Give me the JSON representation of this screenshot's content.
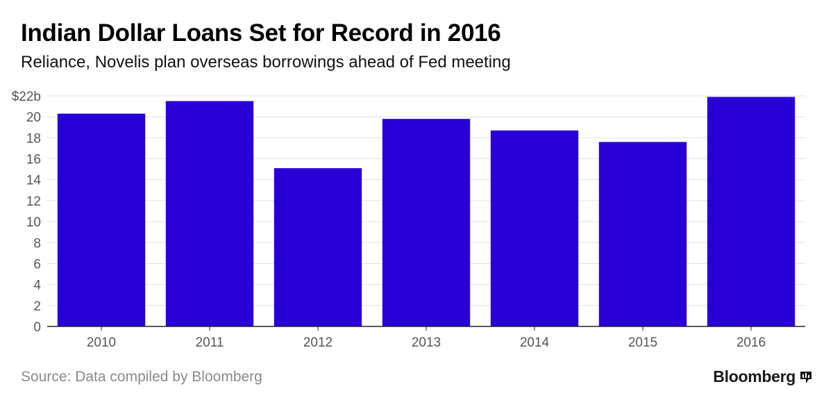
{
  "chart_data": {
    "type": "bar",
    "title": "Indian Dollar Loans Set for Record in 2016",
    "subtitle": "Reliance, Novelis plan overseas borrowings ahead of Fed meeting",
    "categories": [
      "2010",
      "2011",
      "2012",
      "2013",
      "2014",
      "2015",
      "2016"
    ],
    "values": [
      20.3,
      21.5,
      15.1,
      19.8,
      18.7,
      17.6,
      21.9
    ],
    "ylim": [
      0,
      22
    ],
    "yticks": [
      0,
      2,
      4,
      6,
      8,
      10,
      12,
      14,
      16,
      18,
      20,
      22
    ],
    "ytick_labels": [
      "0",
      "2",
      "4",
      "6",
      "8",
      "10",
      "12",
      "14",
      "16",
      "18",
      "20",
      "$22b"
    ],
    "xlabel": "",
    "ylabel": "",
    "bar_color": "#2a00d9",
    "grid": true
  },
  "footer": {
    "source": "Source: Data compiled by Bloomberg",
    "brand": "Bloomberg"
  }
}
